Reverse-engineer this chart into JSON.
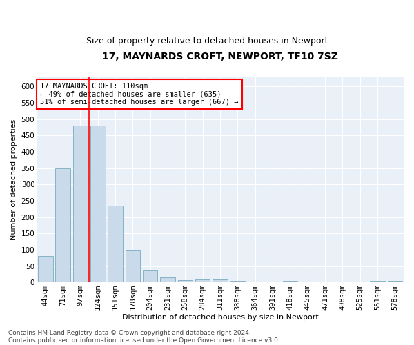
{
  "title": "17, MAYNARDS CROFT, NEWPORT, TF10 7SZ",
  "subtitle": "Size of property relative to detached houses in Newport",
  "xlabel": "Distribution of detached houses by size in Newport",
  "ylabel": "Number of detached properties",
  "categories": [
    "44sqm",
    "71sqm",
    "97sqm",
    "124sqm",
    "151sqm",
    "178sqm",
    "204sqm",
    "231sqm",
    "258sqm",
    "284sqm",
    "311sqm",
    "338sqm",
    "364sqm",
    "391sqm",
    "418sqm",
    "445sqm",
    "471sqm",
    "498sqm",
    "525sqm",
    "551sqm",
    "578sqm"
  ],
  "values": [
    80,
    350,
    480,
    480,
    235,
    97,
    37,
    16,
    7,
    8,
    8,
    4,
    0,
    0,
    5,
    0,
    0,
    0,
    0,
    5,
    5
  ],
  "bar_color": "#c9daea",
  "bar_edge_color": "#7aaabf",
  "red_line_x": 2.5,
  "annotation_text": "17 MAYNARDS CROFT: 110sqm\n← 49% of detached houses are smaller (635)\n51% of semi-detached houses are larger (667) →",
  "annotation_box_color": "white",
  "annotation_box_edge": "red",
  "footer_text": "Contains HM Land Registry data © Crown copyright and database right 2024.\nContains public sector information licensed under the Open Government Licence v3.0.",
  "ylim": [
    0,
    630
  ],
  "yticks": [
    0,
    50,
    100,
    150,
    200,
    250,
    300,
    350,
    400,
    450,
    500,
    550,
    600
  ],
  "background_color": "#eaf0f8",
  "grid_color": "white",
  "title_fontsize": 10,
  "subtitle_fontsize": 9,
  "tick_fontsize": 7.5,
  "footer_fontsize": 6.5
}
